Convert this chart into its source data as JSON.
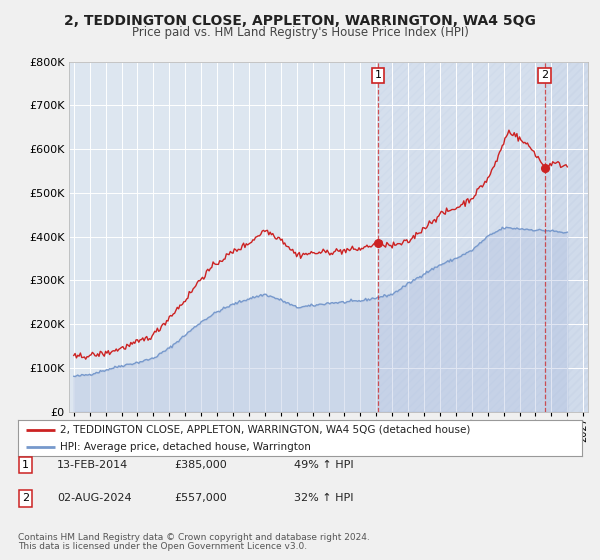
{
  "title": "2, TEDDINGTON CLOSE, APPLETON, WARRINGTON, WA4 5QG",
  "subtitle": "Price paid vs. HM Land Registry's House Price Index (HPI)",
  "fig_bg_color": "#f0f0f0",
  "plot_bg_color": "#dde6f0",
  "grid_color": "#ffffff",
  "hpi_line_color": "#7799cc",
  "hpi_fill_color": "#aabbdd",
  "price_line_color": "#cc2222",
  "shade_color": "#c8d4e8",
  "xmin": 1994.7,
  "xmax": 2027.3,
  "ymin": 0,
  "ymax": 800000,
  "yticks": [
    0,
    100000,
    200000,
    300000,
    400000,
    500000,
    600000,
    700000,
    800000
  ],
  "ytick_labels": [
    "£0",
    "£100K",
    "£200K",
    "£300K",
    "£400K",
    "£500K",
    "£600K",
    "£700K",
    "£800K"
  ],
  "sale1_x": 2014.12,
  "sale1_y": 385000,
  "sale2_x": 2024.585,
  "sale2_y": 557000,
  "legend_label1": "2, TEDDINGTON CLOSE, APPLETON, WARRINGTON, WA4 5QG (detached house)",
  "legend_label2": "HPI: Average price, detached house, Warrington",
  "footer1": "Contains HM Land Registry data © Crown copyright and database right 2024.",
  "footer2": "This data is licensed under the Open Government Licence v3.0.",
  "table_row1": [
    "1",
    "13-FEB-2014",
    "£385,000",
    "49% ↑ HPI"
  ],
  "table_row2": [
    "2",
    "02-AUG-2024",
    "£557,000",
    "32% ↑ HPI"
  ],
  "hpi_anchors_y": [
    1995,
    1996,
    1997,
    1998,
    1999,
    2000,
    2001,
    2002,
    2003,
    2004,
    2005,
    2006,
    2007,
    2008,
    2009,
    2010,
    2011,
    2012,
    2013,
    2014,
    2015,
    2016,
    2017,
    2018,
    2019,
    2020,
    2021,
    2022,
    2023,
    2024,
    2025,
    2026
  ],
  "hpi_anchors_v": [
    80000,
    85000,
    95000,
    105000,
    112000,
    122000,
    145000,
    175000,
    205000,
    228000,
    245000,
    258000,
    268000,
    255000,
    238000,
    242000,
    248000,
    250000,
    253000,
    260000,
    268000,
    292000,
    315000,
    335000,
    350000,
    368000,
    400000,
    420000,
    418000,
    415000,
    413000,
    408000
  ],
  "price_anchors_y": [
    1995,
    1996,
    1997,
    1998,
    1999,
    2000,
    2001,
    2002,
    2003,
    2004,
    2005,
    2006,
    2007,
    2008,
    2009,
    2010,
    2011,
    2012,
    2013,
    2014.12,
    2014.5,
    2015,
    2016,
    2017,
    2018,
    2019,
    2020,
    2021,
    2021.5,
    2022,
    2022.3,
    2022.7,
    2023,
    2023.5,
    2024,
    2024.585,
    2025,
    2026
  ],
  "price_anchors_v": [
    125000,
    128000,
    133000,
    145000,
    158000,
    175000,
    215000,
    255000,
    305000,
    340000,
    365000,
    385000,
    415000,
    395000,
    358000,
    362000,
    365000,
    368000,
    372000,
    385000,
    383000,
    378000,
    388000,
    420000,
    450000,
    465000,
    488000,
    532000,
    568000,
    615000,
    640000,
    635000,
    622000,
    610000,
    590000,
    557000,
    568000,
    562000
  ]
}
